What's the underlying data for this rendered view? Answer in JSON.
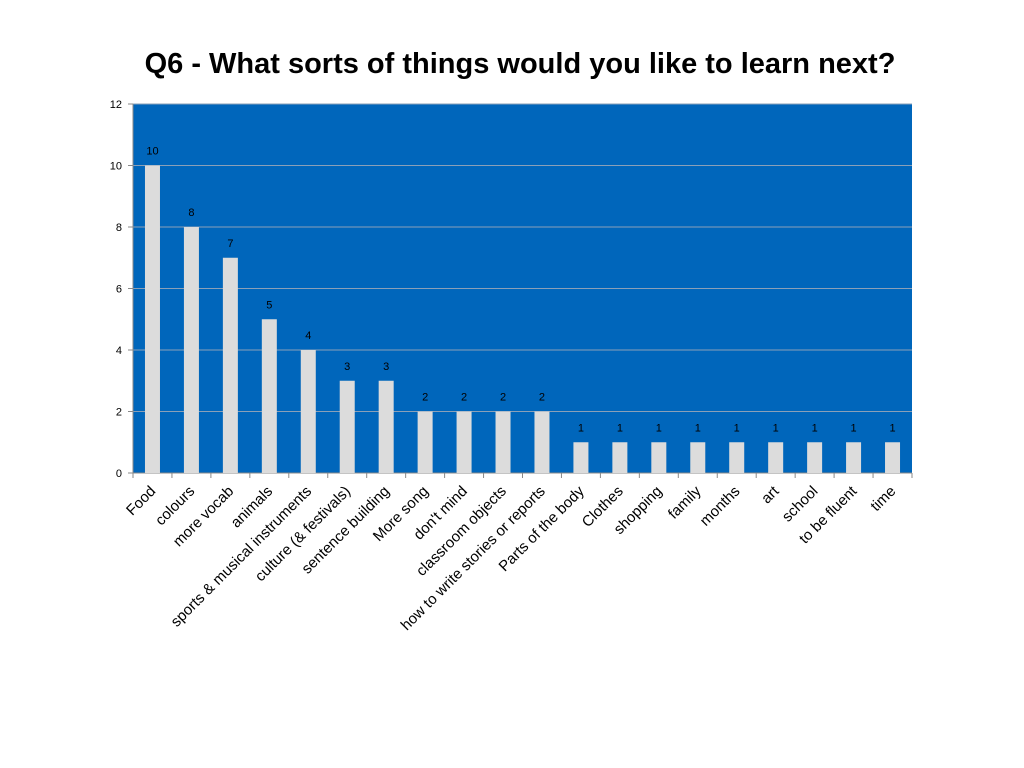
{
  "chart_data": {
    "type": "bar",
    "title": "Q6 - What sorts of things would you like to learn next?",
    "xlabel": "",
    "ylabel": "",
    "ylim": [
      0,
      12
    ],
    "yticks": [
      0,
      2,
      4,
      6,
      8,
      10,
      12
    ],
    "grid": true,
    "legend": "none",
    "colors": {
      "plot_background": "#0066bb",
      "bar_fill": "#dcdcdc",
      "gridline": "#8aa0b8"
    },
    "categories": [
      "Food",
      "colours",
      "more vocab",
      "animals",
      "sports & musical instruments",
      "culture (& festivals)",
      "sentence building",
      "More song",
      "don't mind",
      "classroom objects",
      "how to write stories or reports",
      "Parts of the body",
      "Clothes",
      "shopping",
      "family",
      "months",
      "art",
      "school",
      "to be fluent",
      "time"
    ],
    "values": [
      10,
      8,
      7,
      5,
      4,
      3,
      3,
      2,
      2,
      2,
      2,
      1,
      1,
      1,
      1,
      1,
      1,
      1,
      1,
      1
    ]
  }
}
